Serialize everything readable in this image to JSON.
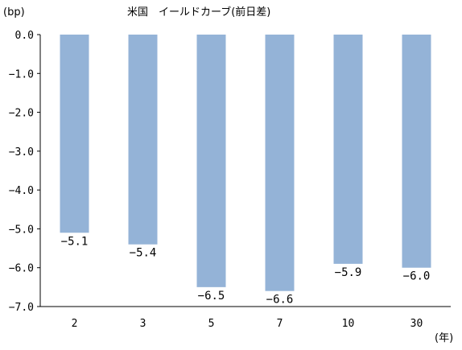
{
  "chart_data": {
    "type": "bar",
    "title": "米国　イールドカーブ(前日差)",
    "y_unit": "(bp)",
    "x_unit": "(年)",
    "categories": [
      "2",
      "3",
      "5",
      "7",
      "10",
      "30"
    ],
    "values": [
      -5.1,
      -5.4,
      -6.5,
      -6.6,
      -5.9,
      -6.0
    ],
    "data_labels": [
      "−5.1",
      "−5.4",
      "−6.5",
      "−6.6",
      "−5.9",
      "−6.0"
    ],
    "yticks": [
      "0.0",
      "−1.0",
      "−2.0",
      "−3.0",
      "−4.0",
      "−5.0",
      "−6.0",
      "−7.0"
    ],
    "ylim": [
      -7.0,
      0.0
    ],
    "grid": false,
    "legend": "none",
    "bar_color": "#94b3d7"
  }
}
